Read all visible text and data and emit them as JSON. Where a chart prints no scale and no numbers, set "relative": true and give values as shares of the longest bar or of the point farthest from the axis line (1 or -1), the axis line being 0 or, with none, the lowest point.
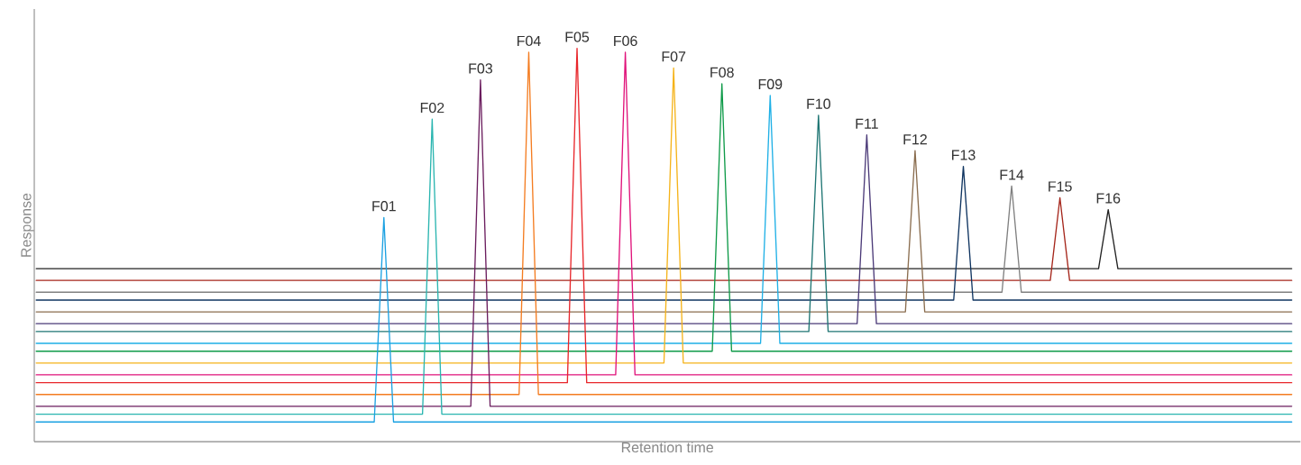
{
  "chart_data": {
    "type": "line",
    "relative": true,
    "xlabel": "Retention time",
    "ylabel": "Response",
    "categories": [
      null,
      null,
      null,
      null,
      null,
      null,
      null,
      null,
      null,
      null,
      null,
      null,
      null,
      null,
      null,
      null,
      null,
      null,
      null,
      null,
      null,
      null,
      null,
      null,
      null,
      null,
      null,
      null,
      null,
      null,
      null,
      null,
      null,
      null,
      null,
      null,
      null,
      null,
      null,
      null,
      null,
      null,
      null,
      null,
      null,
      null,
      null,
      null,
      null,
      null,
      null,
      null,
      null,
      null,
      null,
      null,
      null,
      null,
      null,
      null,
      null,
      null,
      null,
      null,
      null,
      null,
      null,
      null,
      null,
      null,
      null,
      null,
      null,
      null,
      null,
      null,
      null,
      null,
      null,
      null,
      null,
      null,
      null,
      null,
      null,
      null,
      null,
      null,
      null,
      null,
      null,
      null,
      null,
      null,
      null,
      null,
      null,
      null,
      null,
      null,
      null,
      null,
      null,
      null,
      null,
      null,
      null,
      null,
      null,
      null,
      null,
      null,
      null,
      null,
      null,
      null,
      null,
      null,
      null,
      null,
      null,
      null,
      null,
      null,
      null,
      null,
      null,
      null,
      null,
      null,
      null
    ],
    "series": [
      {
        "name": "F01",
        "color": "#1BA1E2",
        "values": [
          0.05,
          0.05,
          0.05,
          0.05,
          0.05,
          0.05,
          0.05,
          0.05,
          0.05,
          0.05,
          0.05,
          0.05,
          0.05,
          0.05,
          0.05,
          0.05,
          0.05,
          0.05,
          0.05,
          0.05,
          0.05,
          0.05,
          0.05,
          0.05,
          0.05,
          0.05,
          0.05,
          0.05,
          0.05,
          0.05,
          0.05,
          0.05,
          0.05,
          0.05,
          0.05,
          0.05,
          0.57,
          0.05,
          0.05,
          0.05,
          0.05,
          0.05,
          0.05,
          0.05,
          0.05,
          0.05,
          0.05,
          0.05,
          0.05,
          0.05,
          0.05,
          0.05,
          0.05,
          0.05,
          0.05,
          0.05,
          0.05,
          0.05,
          0.05,
          0.05,
          0.05,
          0.05,
          0.05,
          0.05,
          0.05,
          0.05,
          0.05,
          0.05,
          0.05,
          0.05,
          0.05,
          0.05,
          0.05,
          0.05,
          0.05,
          0.05,
          0.05,
          0.05,
          0.05,
          0.05,
          0.05,
          0.05,
          0.05,
          0.05,
          0.05,
          0.05,
          0.05,
          0.05,
          0.05,
          0.05,
          0.05,
          0.05,
          0.05,
          0.05,
          0.05,
          0.05,
          0.05,
          0.05,
          0.05,
          0.05,
          0.05,
          0.05,
          0.05,
          0.05,
          0.05,
          0.05,
          0.05,
          0.05,
          0.05,
          0.05,
          0.05,
          0.05,
          0.05,
          0.05,
          0.05,
          0.05,
          0.05,
          0.05,
          0.05,
          0.05,
          0.05,
          0.05,
          0.05,
          0.05,
          0.05,
          0.05,
          0.05,
          0.05,
          0.05,
          0.05,
          0.05
        ]
      },
      {
        "name": "F02",
        "color": "#2AB5B0",
        "values": [
          0.07,
          0.07,
          0.07,
          0.07,
          0.07,
          0.07,
          0.07,
          0.07,
          0.07,
          0.07,
          0.07,
          0.07,
          0.07,
          0.07,
          0.07,
          0.07,
          0.07,
          0.07,
          0.07,
          0.07,
          0.07,
          0.07,
          0.07,
          0.07,
          0.07,
          0.07,
          0.07,
          0.07,
          0.07,
          0.07,
          0.07,
          0.07,
          0.07,
          0.07,
          0.07,
          0.07,
          0.07,
          0.07,
          0.07,
          0.07,
          0.07,
          0.82,
          0.07,
          0.07,
          0.07,
          0.07,
          0.07,
          0.07,
          0.07,
          0.07,
          0.07,
          0.07,
          0.07,
          0.07,
          0.07,
          0.07,
          0.07,
          0.07,
          0.07,
          0.07,
          0.07,
          0.07,
          0.07,
          0.07,
          0.07,
          0.07,
          0.07,
          0.07,
          0.07,
          0.07,
          0.07,
          0.07,
          0.07,
          0.07,
          0.07,
          0.07,
          0.07,
          0.07,
          0.07,
          0.07,
          0.07,
          0.07,
          0.07,
          0.07,
          0.07,
          0.07,
          0.07,
          0.07,
          0.07,
          0.07,
          0.07,
          0.07,
          0.07,
          0.07,
          0.07,
          0.07,
          0.07,
          0.07,
          0.07,
          0.07,
          0.07,
          0.07,
          0.07,
          0.07,
          0.07,
          0.07,
          0.07,
          0.07,
          0.07,
          0.07,
          0.07,
          0.07,
          0.07,
          0.07,
          0.07,
          0.07,
          0.07,
          0.07,
          0.07,
          0.07,
          0.07,
          0.07,
          0.07,
          0.07,
          0.07,
          0.07,
          0.07,
          0.07,
          0.07,
          0.07,
          0.07
        ]
      },
      {
        "name": "F03",
        "color": "#6B1D5E",
        "values": [
          0.09,
          0.09,
          0.09,
          0.09,
          0.09,
          0.09,
          0.09,
          0.09,
          0.09,
          0.09,
          0.09,
          0.09,
          0.09,
          0.09,
          0.09,
          0.09,
          0.09,
          0.09,
          0.09,
          0.09,
          0.09,
          0.09,
          0.09,
          0.09,
          0.09,
          0.09,
          0.09,
          0.09,
          0.09,
          0.09,
          0.09,
          0.09,
          0.09,
          0.09,
          0.09,
          0.09,
          0.09,
          0.09,
          0.09,
          0.09,
          0.09,
          0.09,
          0.09,
          0.09,
          0.09,
          0.09,
          0.92,
          0.09,
          0.09,
          0.09,
          0.09,
          0.09,
          0.09,
          0.09,
          0.09,
          0.09,
          0.09,
          0.09,
          0.09,
          0.09,
          0.09,
          0.09,
          0.09,
          0.09,
          0.09,
          0.09,
          0.09,
          0.09,
          0.09,
          0.09,
          0.09,
          0.09,
          0.09,
          0.09,
          0.09,
          0.09,
          0.09,
          0.09,
          0.09,
          0.09,
          0.09,
          0.09,
          0.09,
          0.09,
          0.09,
          0.09,
          0.09,
          0.09,
          0.09,
          0.09,
          0.09,
          0.09,
          0.09,
          0.09,
          0.09,
          0.09,
          0.09,
          0.09,
          0.09,
          0.09,
          0.09,
          0.09,
          0.09,
          0.09,
          0.09,
          0.09,
          0.09,
          0.09,
          0.09,
          0.09,
          0.09,
          0.09,
          0.09,
          0.09,
          0.09,
          0.09,
          0.09,
          0.09,
          0.09,
          0.09,
          0.09,
          0.09,
          0.09,
          0.09,
          0.09,
          0.09,
          0.09,
          0.09,
          0.09,
          0.09,
          0.09
        ]
      },
      {
        "name": "F04",
        "color": "#F47C20",
        "values": [
          0.12,
          0.12,
          0.12,
          0.12,
          0.12,
          0.12,
          0.12,
          0.12,
          0.12,
          0.12,
          0.12,
          0.12,
          0.12,
          0.12,
          0.12,
          0.12,
          0.12,
          0.12,
          0.12,
          0.12,
          0.12,
          0.12,
          0.12,
          0.12,
          0.12,
          0.12,
          0.12,
          0.12,
          0.12,
          0.12,
          0.12,
          0.12,
          0.12,
          0.12,
          0.12,
          0.12,
          0.12,
          0.12,
          0.12,
          0.12,
          0.12,
          0.12,
          0.12,
          0.12,
          0.12,
          0.12,
          0.12,
          0.12,
          0.12,
          0.12,
          0.12,
          0.99,
          0.12,
          0.12,
          0.12,
          0.12,
          0.12,
          0.12,
          0.12,
          0.12,
          0.12,
          0.12,
          0.12,
          0.12,
          0.12,
          0.12,
          0.12,
          0.12,
          0.12,
          0.12,
          0.12,
          0.12,
          0.12,
          0.12,
          0.12,
          0.12,
          0.12,
          0.12,
          0.12,
          0.12,
          0.12,
          0.12,
          0.12,
          0.12,
          0.12,
          0.12,
          0.12,
          0.12,
          0.12,
          0.12,
          0.12,
          0.12,
          0.12,
          0.12,
          0.12,
          0.12,
          0.12,
          0.12,
          0.12,
          0.12,
          0.12,
          0.12,
          0.12,
          0.12,
          0.12,
          0.12,
          0.12,
          0.12,
          0.12,
          0.12,
          0.12,
          0.12,
          0.12,
          0.12,
          0.12,
          0.12,
          0.12,
          0.12,
          0.12,
          0.12,
          0.12,
          0.12,
          0.12,
          0.12,
          0.12,
          0.12,
          0.12,
          0.12,
          0.12,
          0.12,
          0.12
        ]
      },
      {
        "name": "F05",
        "color": "#E8262B",
        "values": [
          0.15,
          0.15,
          0.15,
          0.15,
          0.15,
          0.15,
          0.15,
          0.15,
          0.15,
          0.15,
          0.15,
          0.15,
          0.15,
          0.15,
          0.15,
          0.15,
          0.15,
          0.15,
          0.15,
          0.15,
          0.15,
          0.15,
          0.15,
          0.15,
          0.15,
          0.15,
          0.15,
          0.15,
          0.15,
          0.15,
          0.15,
          0.15,
          0.15,
          0.15,
          0.15,
          0.15,
          0.15,
          0.15,
          0.15,
          0.15,
          0.15,
          0.15,
          0.15,
          0.15,
          0.15,
          0.15,
          0.15,
          0.15,
          0.15,
          0.15,
          0.15,
          0.15,
          0.15,
          0.15,
          0.15,
          0.15,
          1,
          0.15,
          0.15,
          0.15,
          0.15,
          0.15,
          0.15,
          0.15,
          0.15,
          0.15,
          0.15,
          0.15,
          0.15,
          0.15,
          0.15,
          0.15,
          0.15,
          0.15,
          0.15,
          0.15,
          0.15,
          0.15,
          0.15,
          0.15,
          0.15,
          0.15,
          0.15,
          0.15,
          0.15,
          0.15,
          0.15,
          0.15,
          0.15,
          0.15,
          0.15,
          0.15,
          0.15,
          0.15,
          0.15,
          0.15,
          0.15,
          0.15,
          0.15,
          0.15,
          0.15,
          0.15,
          0.15,
          0.15,
          0.15,
          0.15,
          0.15,
          0.15,
          0.15,
          0.15,
          0.15,
          0.15,
          0.15,
          0.15,
          0.15,
          0.15,
          0.15,
          0.15,
          0.15,
          0.15,
          0.15,
          0.15,
          0.15,
          0.15,
          0.15,
          0.15,
          0.15,
          0.15,
          0.15,
          0.15,
          0.15
        ]
      },
      {
        "name": "F06",
        "color": "#E0127A",
        "values": [
          0.17,
          0.17,
          0.17,
          0.17,
          0.17,
          0.17,
          0.17,
          0.17,
          0.17,
          0.17,
          0.17,
          0.17,
          0.17,
          0.17,
          0.17,
          0.17,
          0.17,
          0.17,
          0.17,
          0.17,
          0.17,
          0.17,
          0.17,
          0.17,
          0.17,
          0.17,
          0.17,
          0.17,
          0.17,
          0.17,
          0.17,
          0.17,
          0.17,
          0.17,
          0.17,
          0.17,
          0.17,
          0.17,
          0.17,
          0.17,
          0.17,
          0.17,
          0.17,
          0.17,
          0.17,
          0.17,
          0.17,
          0.17,
          0.17,
          0.17,
          0.17,
          0.17,
          0.17,
          0.17,
          0.17,
          0.17,
          0.17,
          0.17,
          0.17,
          0.17,
          0.17,
          0.99,
          0.17,
          0.17,
          0.17,
          0.17,
          0.17,
          0.17,
          0.17,
          0.17,
          0.17,
          0.17,
          0.17,
          0.17,
          0.17,
          0.17,
          0.17,
          0.17,
          0.17,
          0.17,
          0.17,
          0.17,
          0.17,
          0.17,
          0.17,
          0.17,
          0.17,
          0.17,
          0.17,
          0.17,
          0.17,
          0.17,
          0.17,
          0.17,
          0.17,
          0.17,
          0.17,
          0.17,
          0.17,
          0.17,
          0.17,
          0.17,
          0.17,
          0.17,
          0.17,
          0.17,
          0.17,
          0.17,
          0.17,
          0.17,
          0.17,
          0.17,
          0.17,
          0.17,
          0.17,
          0.17,
          0.17,
          0.17,
          0.17,
          0.17,
          0.17,
          0.17,
          0.17,
          0.17,
          0.17,
          0.17,
          0.17,
          0.17,
          0.17,
          0.17,
          0.17
        ]
      },
      {
        "name": "F07",
        "color": "#F5B31A",
        "values": [
          0.2,
          0.2,
          0.2,
          0.2,
          0.2,
          0.2,
          0.2,
          0.2,
          0.2,
          0.2,
          0.2,
          0.2,
          0.2,
          0.2,
          0.2,
          0.2,
          0.2,
          0.2,
          0.2,
          0.2,
          0.2,
          0.2,
          0.2,
          0.2,
          0.2,
          0.2,
          0.2,
          0.2,
          0.2,
          0.2,
          0.2,
          0.2,
          0.2,
          0.2,
          0.2,
          0.2,
          0.2,
          0.2,
          0.2,
          0.2,
          0.2,
          0.2,
          0.2,
          0.2,
          0.2,
          0.2,
          0.2,
          0.2,
          0.2,
          0.2,
          0.2,
          0.2,
          0.2,
          0.2,
          0.2,
          0.2,
          0.2,
          0.2,
          0.2,
          0.2,
          0.2,
          0.2,
          0.2,
          0.2,
          0.2,
          0.2,
          0.95,
          0.2,
          0.2,
          0.2,
          0.2,
          0.2,
          0.2,
          0.2,
          0.2,
          0.2,
          0.2,
          0.2,
          0.2,
          0.2,
          0.2,
          0.2,
          0.2,
          0.2,
          0.2,
          0.2,
          0.2,
          0.2,
          0.2,
          0.2,
          0.2,
          0.2,
          0.2,
          0.2,
          0.2,
          0.2,
          0.2,
          0.2,
          0.2,
          0.2,
          0.2,
          0.2,
          0.2,
          0.2,
          0.2,
          0.2,
          0.2,
          0.2,
          0.2,
          0.2,
          0.2,
          0.2,
          0.2,
          0.2,
          0.2,
          0.2,
          0.2,
          0.2,
          0.2,
          0.2,
          0.2,
          0.2,
          0.2,
          0.2,
          0.2,
          0.2,
          0.2,
          0.2,
          0.2,
          0.2,
          0.2
        ]
      },
      {
        "name": "F08",
        "color": "#0E9A48",
        "values": [
          0.23,
          0.23,
          0.23,
          0.23,
          0.23,
          0.23,
          0.23,
          0.23,
          0.23,
          0.23,
          0.23,
          0.23,
          0.23,
          0.23,
          0.23,
          0.23,
          0.23,
          0.23,
          0.23,
          0.23,
          0.23,
          0.23,
          0.23,
          0.23,
          0.23,
          0.23,
          0.23,
          0.23,
          0.23,
          0.23,
          0.23,
          0.23,
          0.23,
          0.23,
          0.23,
          0.23,
          0.23,
          0.23,
          0.23,
          0.23,
          0.23,
          0.23,
          0.23,
          0.23,
          0.23,
          0.23,
          0.23,
          0.23,
          0.23,
          0.23,
          0.23,
          0.23,
          0.23,
          0.23,
          0.23,
          0.23,
          0.23,
          0.23,
          0.23,
          0.23,
          0.23,
          0.23,
          0.23,
          0.23,
          0.23,
          0.23,
          0.23,
          0.23,
          0.23,
          0.23,
          0.23,
          0.91,
          0.23,
          0.23,
          0.23,
          0.23,
          0.23,
          0.23,
          0.23,
          0.23,
          0.23,
          0.23,
          0.23,
          0.23,
          0.23,
          0.23,
          0.23,
          0.23,
          0.23,
          0.23,
          0.23,
          0.23,
          0.23,
          0.23,
          0.23,
          0.23,
          0.23,
          0.23,
          0.23,
          0.23,
          0.23,
          0.23,
          0.23,
          0.23,
          0.23,
          0.23,
          0.23,
          0.23,
          0.23,
          0.23,
          0.23,
          0.23,
          0.23,
          0.23,
          0.23,
          0.23,
          0.23,
          0.23,
          0.23,
          0.23,
          0.23,
          0.23,
          0.23,
          0.23,
          0.23,
          0.23,
          0.23,
          0.23,
          0.23,
          0.23,
          0.23
        ]
      },
      {
        "name": "F09",
        "color": "#1FB0E6",
        "values": [
          0.25,
          0.25,
          0.25,
          0.25,
          0.25,
          0.25,
          0.25,
          0.25,
          0.25,
          0.25,
          0.25,
          0.25,
          0.25,
          0.25,
          0.25,
          0.25,
          0.25,
          0.25,
          0.25,
          0.25,
          0.25,
          0.25,
          0.25,
          0.25,
          0.25,
          0.25,
          0.25,
          0.25,
          0.25,
          0.25,
          0.25,
          0.25,
          0.25,
          0.25,
          0.25,
          0.25,
          0.25,
          0.25,
          0.25,
          0.25,
          0.25,
          0.25,
          0.25,
          0.25,
          0.25,
          0.25,
          0.25,
          0.25,
          0.25,
          0.25,
          0.25,
          0.25,
          0.25,
          0.25,
          0.25,
          0.25,
          0.25,
          0.25,
          0.25,
          0.25,
          0.25,
          0.25,
          0.25,
          0.25,
          0.25,
          0.25,
          0.25,
          0.25,
          0.25,
          0.25,
          0.25,
          0.25,
          0.25,
          0.25,
          0.25,
          0.25,
          0.88,
          0.25,
          0.25,
          0.25,
          0.25,
          0.25,
          0.25,
          0.25,
          0.25,
          0.25,
          0.25,
          0.25,
          0.25,
          0.25,
          0.25,
          0.25,
          0.25,
          0.25,
          0.25,
          0.25,
          0.25,
          0.25,
          0.25,
          0.25,
          0.25,
          0.25,
          0.25,
          0.25,
          0.25,
          0.25,
          0.25,
          0.25,
          0.25,
          0.25,
          0.25,
          0.25,
          0.25,
          0.25,
          0.25,
          0.25,
          0.25,
          0.25,
          0.25,
          0.25,
          0.25,
          0.25,
          0.25,
          0.25,
          0.25,
          0.25,
          0.25,
          0.25,
          0.25,
          0.25,
          0.25
        ]
      },
      {
        "name": "F10",
        "color": "#1E7573",
        "values": [
          0.28,
          0.28,
          0.28,
          0.28,
          0.28,
          0.28,
          0.28,
          0.28,
          0.28,
          0.28,
          0.28,
          0.28,
          0.28,
          0.28,
          0.28,
          0.28,
          0.28,
          0.28,
          0.28,
          0.28,
          0.28,
          0.28,
          0.28,
          0.28,
          0.28,
          0.28,
          0.28,
          0.28,
          0.28,
          0.28,
          0.28,
          0.28,
          0.28,
          0.28,
          0.28,
          0.28,
          0.28,
          0.28,
          0.28,
          0.28,
          0.28,
          0.28,
          0.28,
          0.28,
          0.28,
          0.28,
          0.28,
          0.28,
          0.28,
          0.28,
          0.28,
          0.28,
          0.28,
          0.28,
          0.28,
          0.28,
          0.28,
          0.28,
          0.28,
          0.28,
          0.28,
          0.28,
          0.28,
          0.28,
          0.28,
          0.28,
          0.28,
          0.28,
          0.28,
          0.28,
          0.28,
          0.28,
          0.28,
          0.28,
          0.28,
          0.28,
          0.28,
          0.28,
          0.28,
          0.28,
          0.28,
          0.83,
          0.28,
          0.28,
          0.28,
          0.28,
          0.28,
          0.28,
          0.28,
          0.28,
          0.28,
          0.28,
          0.28,
          0.28,
          0.28,
          0.28,
          0.28,
          0.28,
          0.28,
          0.28,
          0.28,
          0.28,
          0.28,
          0.28,
          0.28,
          0.28,
          0.28,
          0.28,
          0.28,
          0.28,
          0.28,
          0.28,
          0.28,
          0.28,
          0.28,
          0.28,
          0.28,
          0.28,
          0.28,
          0.28,
          0.28,
          0.28,
          0.28,
          0.28,
          0.28,
          0.28,
          0.28,
          0.28,
          0.28,
          0.28,
          0.28
        ]
      },
      {
        "name": "F11",
        "color": "#4B3A78",
        "values": [
          0.3,
          0.3,
          0.3,
          0.3,
          0.3,
          0.3,
          0.3,
          0.3,
          0.3,
          0.3,
          0.3,
          0.3,
          0.3,
          0.3,
          0.3,
          0.3,
          0.3,
          0.3,
          0.3,
          0.3,
          0.3,
          0.3,
          0.3,
          0.3,
          0.3,
          0.3,
          0.3,
          0.3,
          0.3,
          0.3,
          0.3,
          0.3,
          0.3,
          0.3,
          0.3,
          0.3,
          0.3,
          0.3,
          0.3,
          0.3,
          0.3,
          0.3,
          0.3,
          0.3,
          0.3,
          0.3,
          0.3,
          0.3,
          0.3,
          0.3,
          0.3,
          0.3,
          0.3,
          0.3,
          0.3,
          0.3,
          0.3,
          0.3,
          0.3,
          0.3,
          0.3,
          0.3,
          0.3,
          0.3,
          0.3,
          0.3,
          0.3,
          0.3,
          0.3,
          0.3,
          0.3,
          0.3,
          0.3,
          0.3,
          0.3,
          0.3,
          0.3,
          0.3,
          0.3,
          0.3,
          0.3,
          0.3,
          0.3,
          0.3,
          0.3,
          0.3,
          0.78,
          0.3,
          0.3,
          0.3,
          0.3,
          0.3,
          0.3,
          0.3,
          0.3,
          0.3,
          0.3,
          0.3,
          0.3,
          0.3,
          0.3,
          0.3,
          0.3,
          0.3,
          0.3,
          0.3,
          0.3,
          0.3,
          0.3,
          0.3,
          0.3,
          0.3,
          0.3,
          0.3,
          0.3,
          0.3,
          0.3,
          0.3,
          0.3,
          0.3,
          0.3,
          0.3,
          0.3,
          0.3,
          0.3,
          0.3,
          0.3,
          0.3,
          0.3,
          0.3,
          0.3
        ]
      },
      {
        "name": "F12",
        "color": "#8A6D4F",
        "values": [
          0.33,
          0.33,
          0.33,
          0.33,
          0.33,
          0.33,
          0.33,
          0.33,
          0.33,
          0.33,
          0.33,
          0.33,
          0.33,
          0.33,
          0.33,
          0.33,
          0.33,
          0.33,
          0.33,
          0.33,
          0.33,
          0.33,
          0.33,
          0.33,
          0.33,
          0.33,
          0.33,
          0.33,
          0.33,
          0.33,
          0.33,
          0.33,
          0.33,
          0.33,
          0.33,
          0.33,
          0.33,
          0.33,
          0.33,
          0.33,
          0.33,
          0.33,
          0.33,
          0.33,
          0.33,
          0.33,
          0.33,
          0.33,
          0.33,
          0.33,
          0.33,
          0.33,
          0.33,
          0.33,
          0.33,
          0.33,
          0.33,
          0.33,
          0.33,
          0.33,
          0.33,
          0.33,
          0.33,
          0.33,
          0.33,
          0.33,
          0.33,
          0.33,
          0.33,
          0.33,
          0.33,
          0.33,
          0.33,
          0.33,
          0.33,
          0.33,
          0.33,
          0.33,
          0.33,
          0.33,
          0.33,
          0.33,
          0.33,
          0.33,
          0.33,
          0.33,
          0.33,
          0.33,
          0.33,
          0.33,
          0.33,
          0.74,
          0.33,
          0.33,
          0.33,
          0.33,
          0.33,
          0.33,
          0.33,
          0.33,
          0.33,
          0.33,
          0.33,
          0.33,
          0.33,
          0.33,
          0.33,
          0.33,
          0.33,
          0.33,
          0.33,
          0.33,
          0.33,
          0.33,
          0.33,
          0.33,
          0.33,
          0.33,
          0.33,
          0.33,
          0.33,
          0.33,
          0.33,
          0.33,
          0.33,
          0.33,
          0.33,
          0.33,
          0.33,
          0.33,
          0.33
        ]
      },
      {
        "name": "F13",
        "color": "#0F3460",
        "values": [
          0.36,
          0.36,
          0.36,
          0.36,
          0.36,
          0.36,
          0.36,
          0.36,
          0.36,
          0.36,
          0.36,
          0.36,
          0.36,
          0.36,
          0.36,
          0.36,
          0.36,
          0.36,
          0.36,
          0.36,
          0.36,
          0.36,
          0.36,
          0.36,
          0.36,
          0.36,
          0.36,
          0.36,
          0.36,
          0.36,
          0.36,
          0.36,
          0.36,
          0.36,
          0.36,
          0.36,
          0.36,
          0.36,
          0.36,
          0.36,
          0.36,
          0.36,
          0.36,
          0.36,
          0.36,
          0.36,
          0.36,
          0.36,
          0.36,
          0.36,
          0.36,
          0.36,
          0.36,
          0.36,
          0.36,
          0.36,
          0.36,
          0.36,
          0.36,
          0.36,
          0.36,
          0.36,
          0.36,
          0.36,
          0.36,
          0.36,
          0.36,
          0.36,
          0.36,
          0.36,
          0.36,
          0.36,
          0.36,
          0.36,
          0.36,
          0.36,
          0.36,
          0.36,
          0.36,
          0.36,
          0.36,
          0.36,
          0.36,
          0.36,
          0.36,
          0.36,
          0.36,
          0.36,
          0.36,
          0.36,
          0.36,
          0.36,
          0.36,
          0.36,
          0.36,
          0.36,
          0.7,
          0.36,
          0.36,
          0.36,
          0.36,
          0.36,
          0.36,
          0.36,
          0.36,
          0.36,
          0.36,
          0.36,
          0.36,
          0.36,
          0.36,
          0.36,
          0.36,
          0.36,
          0.36,
          0.36,
          0.36,
          0.36,
          0.36,
          0.36,
          0.36,
          0.36,
          0.36,
          0.36,
          0.36,
          0.36,
          0.36,
          0.36,
          0.36,
          0.36,
          0.36
        ]
      },
      {
        "name": "F14",
        "color": "#808080",
        "values": [
          0.38,
          0.38,
          0.38,
          0.38,
          0.38,
          0.38,
          0.38,
          0.38,
          0.38,
          0.38,
          0.38,
          0.38,
          0.38,
          0.38,
          0.38,
          0.38,
          0.38,
          0.38,
          0.38,
          0.38,
          0.38,
          0.38,
          0.38,
          0.38,
          0.38,
          0.38,
          0.38,
          0.38,
          0.38,
          0.38,
          0.38,
          0.38,
          0.38,
          0.38,
          0.38,
          0.38,
          0.38,
          0.38,
          0.38,
          0.38,
          0.38,
          0.38,
          0.38,
          0.38,
          0.38,
          0.38,
          0.38,
          0.38,
          0.38,
          0.38,
          0.38,
          0.38,
          0.38,
          0.38,
          0.38,
          0.38,
          0.38,
          0.38,
          0.38,
          0.38,
          0.38,
          0.38,
          0.38,
          0.38,
          0.38,
          0.38,
          0.38,
          0.38,
          0.38,
          0.38,
          0.38,
          0.38,
          0.38,
          0.38,
          0.38,
          0.38,
          0.38,
          0.38,
          0.38,
          0.38,
          0.38,
          0.38,
          0.38,
          0.38,
          0.38,
          0.38,
          0.38,
          0.38,
          0.38,
          0.38,
          0.38,
          0.38,
          0.38,
          0.38,
          0.38,
          0.38,
          0.38,
          0.38,
          0.38,
          0.38,
          0.38,
          0.65,
          0.38,
          0.38,
          0.38,
          0.38,
          0.38,
          0.38,
          0.38,
          0.38,
          0.38,
          0.38,
          0.38,
          0.38,
          0.38,
          0.38,
          0.38,
          0.38,
          0.38,
          0.38,
          0.38,
          0.38,
          0.38,
          0.38,
          0.38,
          0.38,
          0.38,
          0.38,
          0.38,
          0.38,
          0.38
        ]
      },
      {
        "name": "F15",
        "color": "#A5261B",
        "values": [
          0.41,
          0.41,
          0.41,
          0.41,
          0.41,
          0.41,
          0.41,
          0.41,
          0.41,
          0.41,
          0.41,
          0.41,
          0.41,
          0.41,
          0.41,
          0.41,
          0.41,
          0.41,
          0.41,
          0.41,
          0.41,
          0.41,
          0.41,
          0.41,
          0.41,
          0.41,
          0.41,
          0.41,
          0.41,
          0.41,
          0.41,
          0.41,
          0.41,
          0.41,
          0.41,
          0.41,
          0.41,
          0.41,
          0.41,
          0.41,
          0.41,
          0.41,
          0.41,
          0.41,
          0.41,
          0.41,
          0.41,
          0.41,
          0.41,
          0.41,
          0.41,
          0.41,
          0.41,
          0.41,
          0.41,
          0.41,
          0.41,
          0.41,
          0.41,
          0.41,
          0.41,
          0.41,
          0.41,
          0.41,
          0.41,
          0.41,
          0.41,
          0.41,
          0.41,
          0.41,
          0.41,
          0.41,
          0.41,
          0.41,
          0.41,
          0.41,
          0.41,
          0.41,
          0.41,
          0.41,
          0.41,
          0.41,
          0.41,
          0.41,
          0.41,
          0.41,
          0.41,
          0.41,
          0.41,
          0.41,
          0.41,
          0.41,
          0.41,
          0.41,
          0.41,
          0.41,
          0.41,
          0.41,
          0.41,
          0.41,
          0.41,
          0.41,
          0.41,
          0.41,
          0.41,
          0.41,
          0.62,
          0.41,
          0.41,
          0.41,
          0.41,
          0.41,
          0.41,
          0.41,
          0.41,
          0.41,
          0.41,
          0.41,
          0.41,
          0.41,
          0.41,
          0.41,
          0.41,
          0.41,
          0.41,
          0.41,
          0.41,
          0.41,
          0.41,
          0.41,
          0.41
        ]
      },
      {
        "name": "F16",
        "color": "#222222",
        "values": [
          0.44,
          0.44,
          0.44,
          0.44,
          0.44,
          0.44,
          0.44,
          0.44,
          0.44,
          0.44,
          0.44,
          0.44,
          0.44,
          0.44,
          0.44,
          0.44,
          0.44,
          0.44,
          0.44,
          0.44,
          0.44,
          0.44,
          0.44,
          0.44,
          0.44,
          0.44,
          0.44,
          0.44,
          0.44,
          0.44,
          0.44,
          0.44,
          0.44,
          0.44,
          0.44,
          0.44,
          0.44,
          0.44,
          0.44,
          0.44,
          0.44,
          0.44,
          0.44,
          0.44,
          0.44,
          0.44,
          0.44,
          0.44,
          0.44,
          0.44,
          0.44,
          0.44,
          0.44,
          0.44,
          0.44,
          0.44,
          0.44,
          0.44,
          0.44,
          0.44,
          0.44,
          0.44,
          0.44,
          0.44,
          0.44,
          0.44,
          0.44,
          0.44,
          0.44,
          0.44,
          0.44,
          0.44,
          0.44,
          0.44,
          0.44,
          0.44,
          0.44,
          0.44,
          0.44,
          0.44,
          0.44,
          0.44,
          0.44,
          0.44,
          0.44,
          0.44,
          0.44,
          0.44,
          0.44,
          0.44,
          0.44,
          0.44,
          0.44,
          0.44,
          0.44,
          0.44,
          0.44,
          0.44,
          0.44,
          0.44,
          0.44,
          0.44,
          0.44,
          0.44,
          0.44,
          0.44,
          0.44,
          0.44,
          0.44,
          0.44,
          0.44,
          0.59,
          0.44,
          0.44,
          0.44,
          0.44,
          0.44,
          0.44,
          0.44,
          0.44,
          0.44,
          0.44,
          0.44,
          0.44,
          0.44,
          0.44,
          0.44,
          0.44,
          0.44,
          0.44,
          0.44
        ]
      }
    ]
  }
}
